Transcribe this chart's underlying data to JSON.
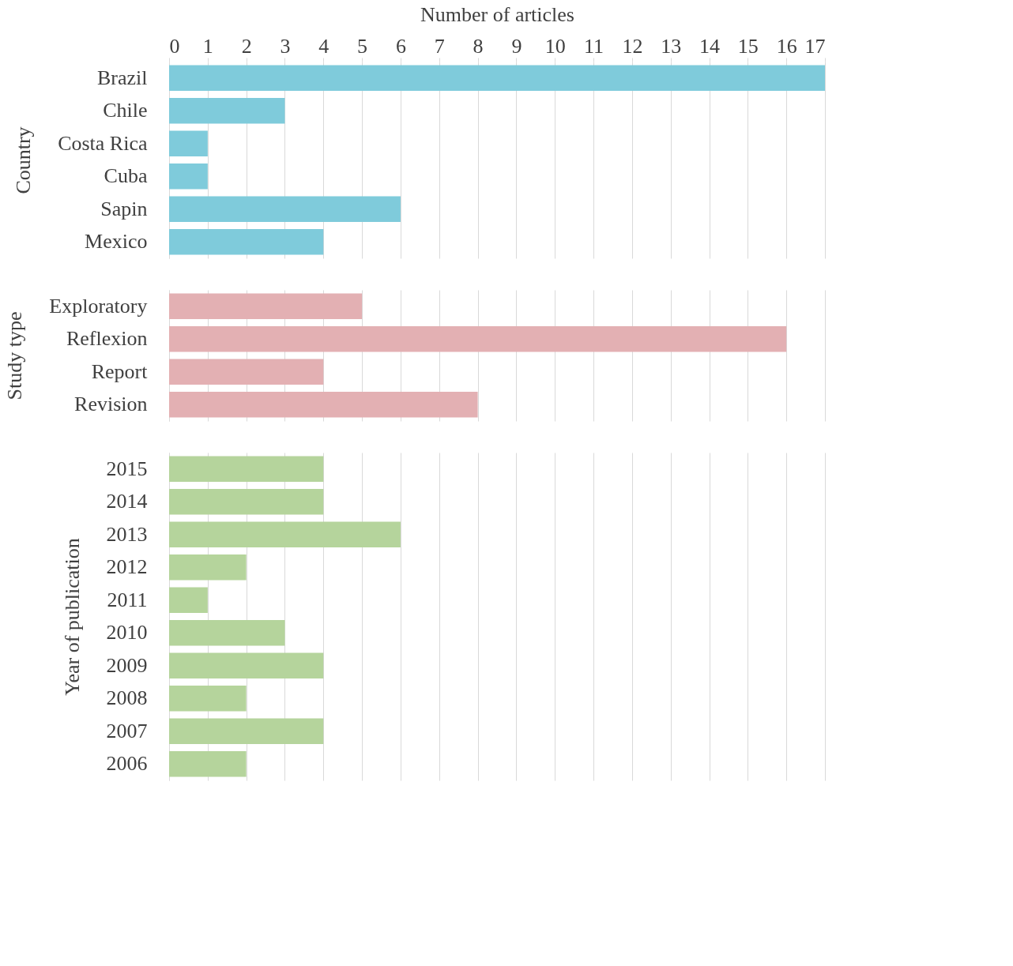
{
  "chart_data": [
    {
      "type": "bar",
      "orientation": "horizontal",
      "xlabel": "Number of articles",
      "ylabel": "Country",
      "categories": [
        "Brazil",
        "Chile",
        "Costa Rica",
        "Cuba",
        "Sapin",
        "Mexico"
      ],
      "values": [
        17,
        3,
        1,
        1,
        6,
        4
      ],
      "color": "#7fcbdb",
      "xlim": [
        0,
        17
      ],
      "xticks": [
        0,
        1,
        2,
        3,
        4,
        5,
        6,
        7,
        8,
        9,
        10,
        11,
        12,
        13,
        14,
        15,
        16,
        17
      ],
      "grid": "x"
    },
    {
      "type": "bar",
      "orientation": "horizontal",
      "ylabel": "Study type",
      "categories": [
        "Exploratory",
        "Reflexion",
        "Report",
        "Revision"
      ],
      "values": [
        5,
        16,
        4,
        8
      ],
      "color": "#e3b0b3",
      "xlim": [
        0,
        17
      ],
      "xticks": [
        0,
        1,
        2,
        3,
        4,
        5,
        6,
        7,
        8,
        9,
        10,
        11,
        12,
        13,
        14,
        15,
        16,
        17
      ],
      "grid": "x",
      "tick_labels": "y"
    },
    {
      "type": "bar",
      "orientation": "horizontal",
      "ylabel": "Year of publication",
      "categories": [
        "2015",
        "2014",
        "2013",
        "2012",
        "2011",
        "2010",
        "2009",
        "2008",
        "2007",
        "2006"
      ],
      "values": [
        4,
        4,
        6,
        2,
        1,
        3,
        4,
        2,
        4,
        2
      ],
      "color": "#b5d49c",
      "xlim": [
        0,
        17
      ],
      "xticks": [
        0,
        1,
        2,
        3,
        4,
        5,
        6,
        7,
        8,
        9,
        10,
        11,
        12,
        13,
        14,
        15,
        16,
        17
      ],
      "grid": "x",
      "tick_labels": "y"
    }
  ]
}
